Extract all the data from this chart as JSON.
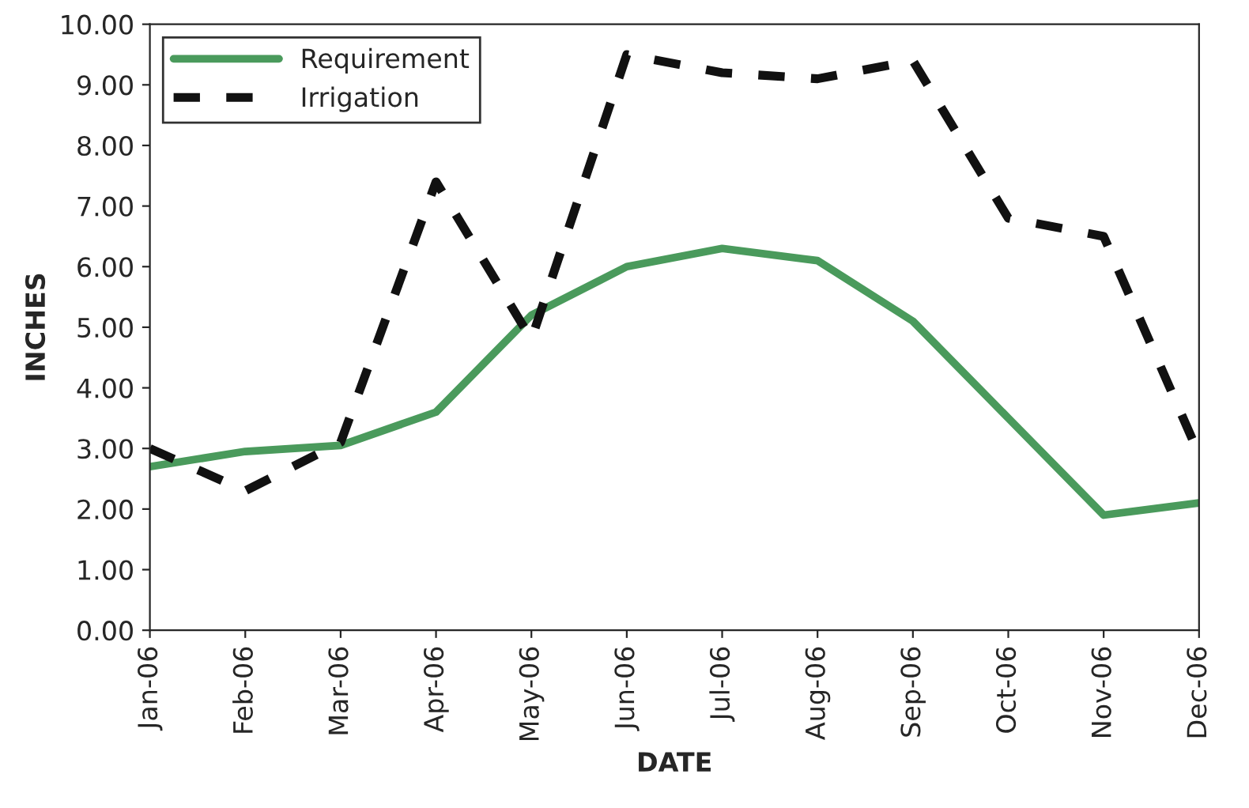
{
  "chart_data": {
    "type": "line",
    "xlabel": "DATE",
    "ylabel": "INCHES",
    "categories": [
      "Jan-06",
      "Feb-06",
      "Mar-06",
      "Apr-06",
      "May-06",
      "Jun-06",
      "Jul-06",
      "Aug-06",
      "Sep-06",
      "Oct-06",
      "Nov-06",
      "Dec-06"
    ],
    "series": [
      {
        "name": "Requirement",
        "color": "#4a9a5c",
        "line_style": "solid",
        "values": [
          2.7,
          2.95,
          3.05,
          3.6,
          5.2,
          6.0,
          6.3,
          6.1,
          5.1,
          3.5,
          1.9,
          2.1
        ]
      },
      {
        "name": "Irrigation",
        "color": "#111111",
        "line_style": "dashed",
        "values": [
          3.0,
          2.3,
          3.1,
          7.4,
          4.8,
          9.5,
          9.2,
          9.1,
          9.4,
          6.8,
          6.5,
          2.9
        ]
      }
    ],
    "ylim": [
      0,
      10
    ],
    "yticks": [
      {
        "value": 0,
        "label": "0.00"
      },
      {
        "value": 1,
        "label": "1.00"
      },
      {
        "value": 2,
        "label": "2.00"
      },
      {
        "value": 3,
        "label": "3.00"
      },
      {
        "value": 4,
        "label": "4.00"
      },
      {
        "value": 5,
        "label": "5.00"
      },
      {
        "value": 6,
        "label": "6.00"
      },
      {
        "value": 7,
        "label": "7.00"
      },
      {
        "value": 8,
        "label": "8.00"
      },
      {
        "value": 9,
        "label": "9.00"
      },
      {
        "value": 10,
        "label": "10.00"
      }
    ],
    "grid": false,
    "legend": "top left",
    "marker": "none"
  }
}
